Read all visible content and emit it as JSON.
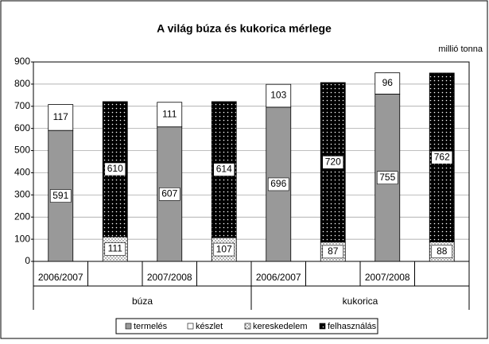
{
  "chart_data": {
    "type": "stacked_bar",
    "title": "A világ búza és kukorica mérlege",
    "unit_label": "millió tonna",
    "categories": [
      "2006/2007",
      null,
      "2007/2008",
      null,
      "2006/2007",
      null,
      "2007/2008",
      null
    ],
    "groups": [
      "búza",
      "kukorica"
    ],
    "series": [
      {
        "name": "termelés",
        "color": "#999999",
        "values": [
          591,
          null,
          607,
          null,
          696,
          null,
          755,
          null
        ]
      },
      {
        "name": "készlet",
        "color": "#ffffff",
        "values": [
          117,
          null,
          111,
          null,
          103,
          null,
          96,
          null
        ]
      },
      {
        "name": "kereskedelem",
        "color": "#ffffff",
        "pattern": "dotted",
        "values": [
          null,
          111,
          null,
          107,
          null,
          87,
          null,
          88
        ]
      },
      {
        "name": "felhasználás",
        "color": "#000000",
        "pattern": "dotted",
        "values": [
          null,
          610,
          null,
          614,
          null,
          720,
          null,
          762
        ]
      }
    ],
    "ylim": [
      0,
      900
    ],
    "yticks": [
      0,
      100,
      200,
      300,
      400,
      500,
      600,
      700,
      800,
      900
    ],
    "grid": true,
    "legend": "bottom"
  }
}
